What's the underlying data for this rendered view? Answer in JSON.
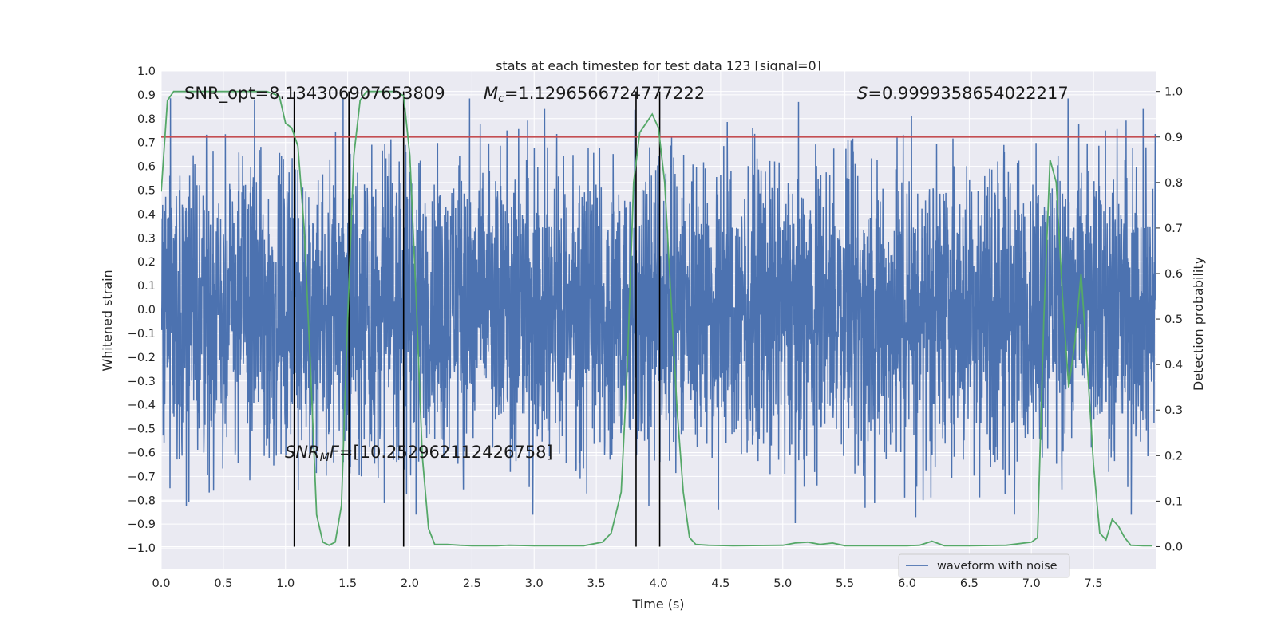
{
  "chart_data": {
    "type": "line",
    "title": "stats at each timestep for test data 123 [signal=0]",
    "xlabel": "Time (s)",
    "ylabel_left": "Whitened strain",
    "ylabel_right": "Detection probability",
    "xlim": [
      0.0,
      8.0
    ],
    "ylim_left": [
      -1.09,
      1.0
    ],
    "ylim_right": [
      -0.05,
      1.045
    ],
    "x_ticks": [
      "0.0",
      "0.5",
      "1.0",
      "1.5",
      "2.0",
      "2.5",
      "3.0",
      "3.5",
      "4.0",
      "4.5",
      "5.0",
      "5.5",
      "6.0",
      "6.5",
      "7.0",
      "7.5"
    ],
    "y_left_ticks": [
      "1.0",
      "0.9",
      "0.8",
      "0.7",
      "0.6",
      "0.5",
      "0.4",
      "0.3",
      "0.2",
      "0.1",
      "0.0",
      "−0.1",
      "−0.2",
      "−0.3",
      "−0.4",
      "−0.5",
      "−0.6",
      "−0.7",
      "−0.8",
      "−0.9",
      "−1.0"
    ],
    "y_right_ticks": [
      "1.0",
      "0.9",
      "0.8",
      "0.7",
      "0.6",
      "0.5",
      "0.4",
      "0.3",
      "0.2",
      "0.1",
      "0.0"
    ],
    "grid": true,
    "legend": {
      "position": "lower-right",
      "entries": [
        "waveform with noise"
      ]
    },
    "colors": {
      "waveform": "#4c72b0",
      "probability": "#55a868",
      "threshold": "#c44e52",
      "markers": "#000000",
      "background": "#eaeaf2",
      "grid": "#ffffff"
    },
    "series": [
      {
        "name": "waveform with noise",
        "axis": "left",
        "approx_envelope": {
          "typical_max": 0.5,
          "typical_min": -0.45,
          "peak_max": 0.91,
          "peak_min": -1.0,
          "duration_s": 8.0
        }
      },
      {
        "axis": "right",
        "x": [
          0.0,
          0.05,
          0.1,
          0.2,
          0.3,
          0.5,
          0.7,
          0.85,
          0.95,
          1.0,
          1.05,
          1.1,
          1.15,
          1.2,
          1.25,
          1.3,
          1.35,
          1.4,
          1.45,
          1.5,
          1.55,
          1.6,
          1.65,
          1.7,
          1.8,
          1.9,
          1.95,
          2.0,
          2.05,
          2.1,
          2.15,
          2.2,
          2.3,
          2.4,
          2.5,
          2.7,
          2.8,
          3.0,
          3.2,
          3.4,
          3.55,
          3.62,
          3.7,
          3.75,
          3.8,
          3.85,
          3.9,
          3.95,
          4.0,
          4.05,
          4.1,
          4.15,
          4.2,
          4.25,
          4.3,
          4.4,
          4.6,
          5.0,
          5.1,
          5.2,
          5.3,
          5.4,
          5.5,
          5.6,
          5.8,
          6.0,
          6.1,
          6.2,
          6.3,
          6.5,
          6.8,
          7.0,
          7.05,
          7.1,
          7.15,
          7.2,
          7.25,
          7.3,
          7.35,
          7.4,
          7.45,
          7.5,
          7.55,
          7.6,
          7.65,
          7.7,
          7.75,
          7.8,
          7.9,
          7.97
        ],
        "values": [
          0.78,
          0.98,
          1.0,
          1.0,
          1.0,
          1.0,
          1.0,
          1.0,
          0.99,
          0.93,
          0.92,
          0.88,
          0.7,
          0.4,
          0.07,
          0.01,
          0.003,
          0.01,
          0.09,
          0.5,
          0.86,
          0.98,
          1.0,
          1.0,
          1.0,
          1.0,
          0.99,
          0.86,
          0.55,
          0.2,
          0.04,
          0.005,
          0.005,
          0.003,
          0.002,
          0.002,
          0.003,
          0.002,
          0.002,
          0.002,
          0.01,
          0.03,
          0.12,
          0.4,
          0.8,
          0.91,
          0.93,
          0.95,
          0.92,
          0.8,
          0.55,
          0.3,
          0.12,
          0.02,
          0.005,
          0.003,
          0.002,
          0.003,
          0.008,
          0.01,
          0.005,
          0.008,
          0.002,
          0.002,
          0.002,
          0.002,
          0.003,
          0.012,
          0.002,
          0.002,
          0.003,
          0.01,
          0.02,
          0.5,
          0.85,
          0.8,
          0.55,
          0.35,
          0.45,
          0.6,
          0.4,
          0.18,
          0.03,
          0.015,
          0.06,
          0.045,
          0.02,
          0.003,
          0.002,
          0.002
        ]
      },
      {
        "axis": "right",
        "type": "hline",
        "y": 0.9
      }
    ],
    "vlines_x": [
      1.07,
      1.51,
      1.95,
      3.82,
      4.01
    ],
    "annotations": {
      "snr_opt": "SNR_opt=8.134306907653809",
      "mc_symbol": "M",
      "mc_sub": "c",
      "mc_value": "=1.1296566724777222",
      "s_symbol": "S",
      "s_value": "=0.9999358654022217",
      "snr_mf_symbol": "SNR",
      "snr_mf_sub": "M",
      "snr_mf_sub2": "F",
      "snr_mf_value": "=[10.252962112426758]"
    }
  }
}
